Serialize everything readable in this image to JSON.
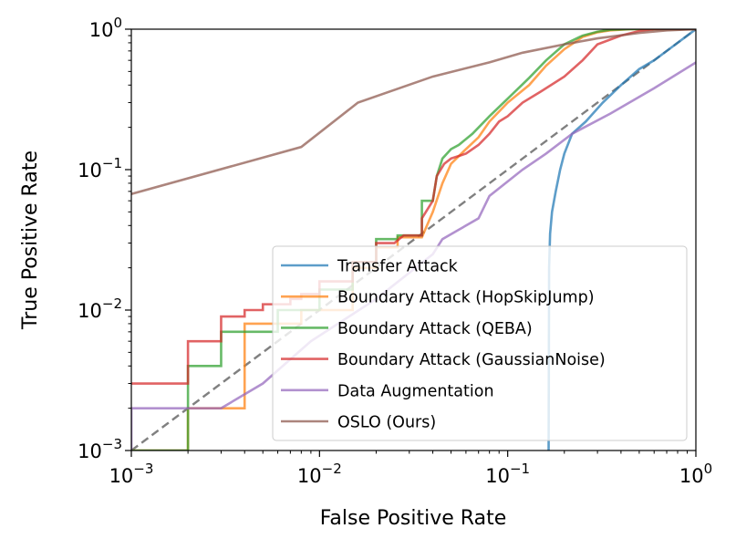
{
  "chart_data": {
    "type": "line",
    "title": "",
    "xlabel": "False Positive Rate",
    "ylabel": "True Positive Rate",
    "xscale": "log",
    "yscale": "log",
    "xlim": [
      0.001,
      1
    ],
    "ylim": [
      0.001,
      1
    ],
    "x_ticks": [
      {
        "value": 0.001,
        "base": "10",
        "exp": "−3"
      },
      {
        "value": 0.01,
        "base": "10",
        "exp": "−2"
      },
      {
        "value": 0.1,
        "base": "10",
        "exp": "−1"
      },
      {
        "value": 1,
        "base": "10",
        "exp": "0"
      }
    ],
    "y_ticks": [
      {
        "value": 0.001,
        "base": "10",
        "exp": "−3"
      },
      {
        "value": 0.01,
        "base": "10",
        "exp": "−2"
      },
      {
        "value": 0.1,
        "base": "10",
        "exp": "−1"
      },
      {
        "value": 1,
        "base": "10",
        "exp": "0"
      }
    ],
    "legend_position": "lower-right",
    "reference_line": {
      "name": "chance",
      "color": "#808080",
      "dash": "dashed",
      "points": [
        [
          0.001,
          0.001
        ],
        [
          1,
          1
        ]
      ]
    },
    "series": [
      {
        "name": "Transfer Attack",
        "color": "#1f77b4",
        "step": false,
        "points": [
          [
            0.165,
            0.001
          ],
          [
            0.166,
            0.02
          ],
          [
            0.168,
            0.035
          ],
          [
            0.172,
            0.05
          ],
          [
            0.18,
            0.07
          ],
          [
            0.19,
            0.1
          ],
          [
            0.2,
            0.13
          ],
          [
            0.22,
            0.18
          ],
          [
            0.26,
            0.22
          ],
          [
            0.32,
            0.3
          ],
          [
            0.4,
            0.4
          ],
          [
            0.5,
            0.52
          ],
          [
            0.6,
            0.6
          ],
          [
            0.75,
            0.75
          ],
          [
            0.88,
            0.88
          ],
          [
            1.0,
            1.0
          ]
        ]
      },
      {
        "name": "Boundary Attack (HopSkipJump)",
        "color": "#ff7f0e",
        "step": true,
        "points": [
          [
            0.001,
            0.001
          ],
          [
            0.002,
            0.001
          ],
          [
            0.002,
            0.002
          ],
          [
            0.004,
            0.002
          ],
          [
            0.004,
            0.008
          ],
          [
            0.008,
            0.008
          ],
          [
            0.008,
            0.01
          ],
          [
            0.015,
            0.01
          ],
          [
            0.015,
            0.02
          ],
          [
            0.02,
            0.02
          ],
          [
            0.02,
            0.028
          ],
          [
            0.026,
            0.028
          ],
          [
            0.026,
            0.033
          ],
          [
            0.035,
            0.033
          ],
          [
            0.04,
            0.05
          ],
          [
            0.045,
            0.08
          ],
          [
            0.05,
            0.11
          ],
          [
            0.06,
            0.14
          ],
          [
            0.07,
            0.17
          ],
          [
            0.08,
            0.22
          ],
          [
            0.1,
            0.3
          ],
          [
            0.13,
            0.4
          ],
          [
            0.16,
            0.55
          ],
          [
            0.2,
            0.72
          ],
          [
            0.25,
            0.88
          ],
          [
            0.3,
            0.95
          ],
          [
            0.35,
            0.98
          ],
          [
            0.45,
            1.0
          ],
          [
            1.0,
            1.0
          ]
        ]
      },
      {
        "name": "Boundary Attack (QEBA)",
        "color": "#2ca02c",
        "step": true,
        "points": [
          [
            0.001,
            0.001
          ],
          [
            0.002,
            0.001
          ],
          [
            0.002,
            0.004
          ],
          [
            0.003,
            0.004
          ],
          [
            0.003,
            0.007
          ],
          [
            0.006,
            0.007
          ],
          [
            0.006,
            0.01
          ],
          [
            0.01,
            0.01
          ],
          [
            0.01,
            0.014
          ],
          [
            0.015,
            0.014
          ],
          [
            0.015,
            0.022
          ],
          [
            0.02,
            0.022
          ],
          [
            0.02,
            0.032
          ],
          [
            0.026,
            0.032
          ],
          [
            0.026,
            0.034
          ],
          [
            0.035,
            0.034
          ],
          [
            0.035,
            0.06
          ],
          [
            0.04,
            0.06
          ],
          [
            0.042,
            0.09
          ],
          [
            0.045,
            0.12
          ],
          [
            0.05,
            0.14
          ],
          [
            0.055,
            0.15
          ],
          [
            0.065,
            0.18
          ],
          [
            0.08,
            0.24
          ],
          [
            0.1,
            0.32
          ],
          [
            0.13,
            0.45
          ],
          [
            0.16,
            0.6
          ],
          [
            0.2,
            0.78
          ],
          [
            0.25,
            0.9
          ],
          [
            0.3,
            0.96
          ],
          [
            0.35,
            0.99
          ],
          [
            0.45,
            1.0
          ],
          [
            1.0,
            1.0
          ]
        ]
      },
      {
        "name": "Boundary Attack (GaussianNoise)",
        "color": "#d62728",
        "step": true,
        "points": [
          [
            0.001,
            0.003
          ],
          [
            0.002,
            0.003
          ],
          [
            0.002,
            0.006
          ],
          [
            0.003,
            0.006
          ],
          [
            0.003,
            0.009
          ],
          [
            0.004,
            0.009
          ],
          [
            0.004,
            0.01
          ],
          [
            0.005,
            0.01
          ],
          [
            0.005,
            0.011
          ],
          [
            0.007,
            0.011
          ],
          [
            0.007,
            0.012
          ],
          [
            0.008,
            0.012
          ],
          [
            0.008,
            0.013
          ],
          [
            0.01,
            0.013
          ],
          [
            0.01,
            0.016
          ],
          [
            0.015,
            0.016
          ],
          [
            0.015,
            0.022
          ],
          [
            0.02,
            0.022
          ],
          [
            0.02,
            0.03
          ],
          [
            0.025,
            0.03
          ],
          [
            0.028,
            0.034
          ],
          [
            0.035,
            0.034
          ],
          [
            0.035,
            0.045
          ],
          [
            0.04,
            0.06
          ],
          [
            0.042,
            0.09
          ],
          [
            0.046,
            0.11
          ],
          [
            0.05,
            0.12
          ],
          [
            0.06,
            0.13
          ],
          [
            0.07,
            0.15
          ],
          [
            0.08,
            0.18
          ],
          [
            0.09,
            0.22
          ],
          [
            0.1,
            0.24
          ],
          [
            0.12,
            0.3
          ],
          [
            0.15,
            0.36
          ],
          [
            0.2,
            0.46
          ],
          [
            0.25,
            0.6
          ],
          [
            0.3,
            0.78
          ],
          [
            0.4,
            0.9
          ],
          [
            0.5,
            0.97
          ],
          [
            0.6,
            1.0
          ],
          [
            1.0,
            1.0
          ]
        ]
      },
      {
        "name": "Data Augmentation",
        "color": "#9467bd",
        "step": false,
        "points": [
          [
            0.001,
            0.001
          ],
          [
            0.001,
            0.002
          ],
          [
            0.003,
            0.002
          ],
          [
            0.005,
            0.003
          ],
          [
            0.009,
            0.006
          ],
          [
            0.02,
            0.012
          ],
          [
            0.04,
            0.025
          ],
          [
            0.045,
            0.032
          ],
          [
            0.07,
            0.045
          ],
          [
            0.08,
            0.065
          ],
          [
            0.12,
            0.1
          ],
          [
            0.16,
            0.13
          ],
          [
            0.22,
            0.18
          ],
          [
            0.35,
            0.25
          ],
          [
            0.6,
            0.38
          ],
          [
            1.0,
            0.58
          ]
        ]
      },
      {
        "name": "OSLO (Ours)",
        "color": "#8c564b",
        "step": false,
        "points": [
          [
            0.001,
            0.067
          ],
          [
            0.008,
            0.145
          ],
          [
            0.016,
            0.3
          ],
          [
            0.04,
            0.46
          ],
          [
            0.08,
            0.58
          ],
          [
            0.12,
            0.68
          ],
          [
            0.2,
            0.78
          ],
          [
            0.3,
            0.86
          ],
          [
            0.5,
            0.94
          ],
          [
            0.7,
            0.98
          ],
          [
            1.0,
            1.0
          ]
        ]
      }
    ]
  }
}
